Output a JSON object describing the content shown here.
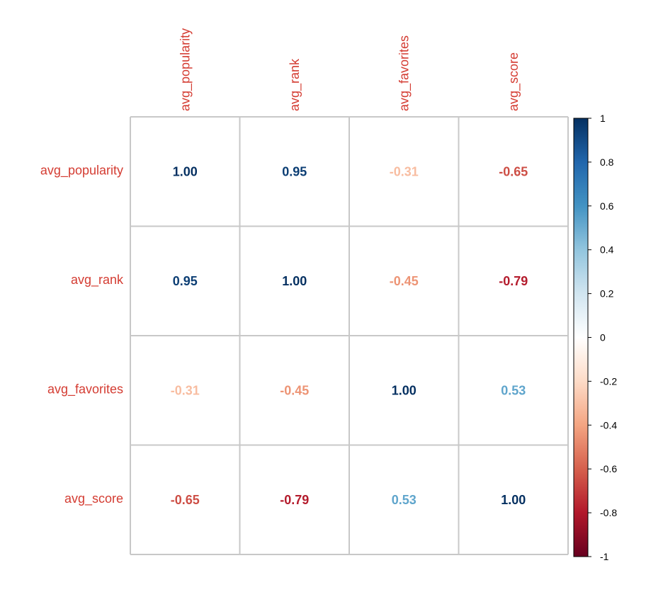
{
  "chart_data": {
    "type": "heatmap",
    "variables": [
      "avg_popularity",
      "avg_rank",
      "avg_favorites",
      "avg_score"
    ],
    "matrix": [
      [
        1.0,
        0.95,
        -0.31,
        -0.65
      ],
      [
        0.95,
        1.0,
        -0.45,
        -0.79
      ],
      [
        -0.31,
        -0.45,
        1.0,
        0.53
      ],
      [
        -0.65,
        -0.79,
        0.53,
        1.0
      ]
    ],
    "value_labels": [
      [
        "1.00",
        "0.95",
        "-0.31",
        "-0.65"
      ],
      [
        "0.95",
        "1.00",
        "-0.45",
        "-0.79"
      ],
      [
        "-0.31",
        "-0.45",
        "1.00",
        "0.53"
      ],
      [
        "-0.65",
        "-0.79",
        "0.53",
        "1.00"
      ]
    ],
    "colorbar": {
      "range": [
        -1,
        1
      ],
      "ticks": [
        1,
        0.8,
        0.6,
        0.4,
        0.2,
        0,
        -0.2,
        -0.4,
        -0.6,
        -0.8,
        -1
      ],
      "tick_labels": [
        "1",
        "0.8",
        "0.6",
        "0.4",
        "0.2",
        "0",
        "-0.2",
        "-0.4",
        "-0.6",
        "-0.8",
        "-1"
      ],
      "stops": [
        "#67001f",
        "#b2182b",
        "#d6604d",
        "#f4a582",
        "#fddbc7",
        "#ffffff",
        "#d1e5f0",
        "#92c5de",
        "#4393c3",
        "#2166ac",
        "#053061"
      ]
    },
    "label_color": "#d43c32",
    "grid_color": "#c8c8c8"
  }
}
